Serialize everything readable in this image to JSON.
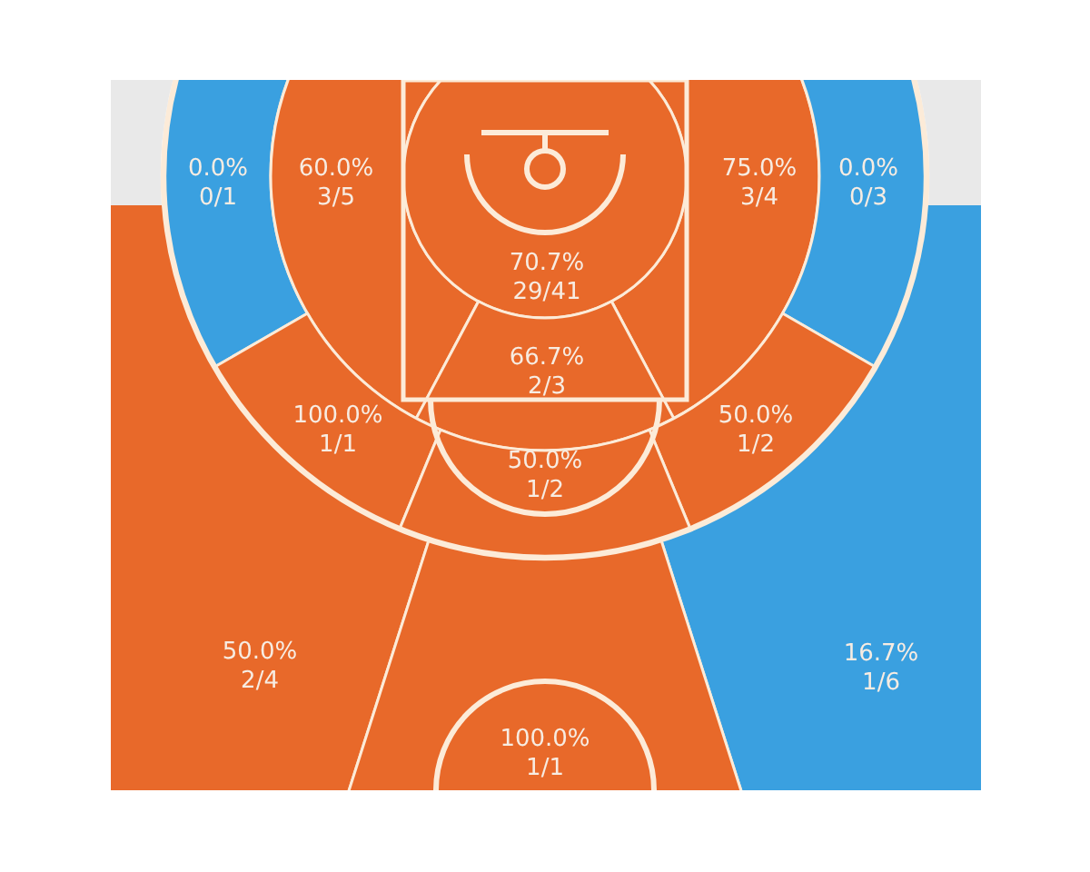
{
  "chart_data": {
    "type": "other",
    "categories": [
      null,
      null,
      null,
      null,
      null,
      null,
      null,
      null,
      null,
      null,
      null,
      null
    ],
    "values": [
      0,
      60,
      75,
      0,
      70.7,
      66.7,
      100,
      50,
      50,
      50,
      16.7,
      100
    ],
    "value_labels": [
      "0.0%\n0/1",
      "60.0%\n3/5",
      "75.0%\n3/4",
      "0.0%\n0/3",
      "70.7%\n29/41",
      "66.7%\n2/3",
      "100.0%\n1/1",
      "50.0%\n1/2",
      "50.0%\n1/2",
      "50.0%\n2/4",
      "16.7%\n1/6",
      "100.0%\n1/1"
    ],
    "colors": [
      "#3aa0e0",
      "#e8692a",
      "#e8692a",
      "#3aa0e0",
      "#e8692a",
      "#e8692a",
      "#e8692a",
      "#e8692a",
      "#e8692a",
      "#e8692a",
      "#3aa0e0",
      "#e8692a"
    ]
  }
}
